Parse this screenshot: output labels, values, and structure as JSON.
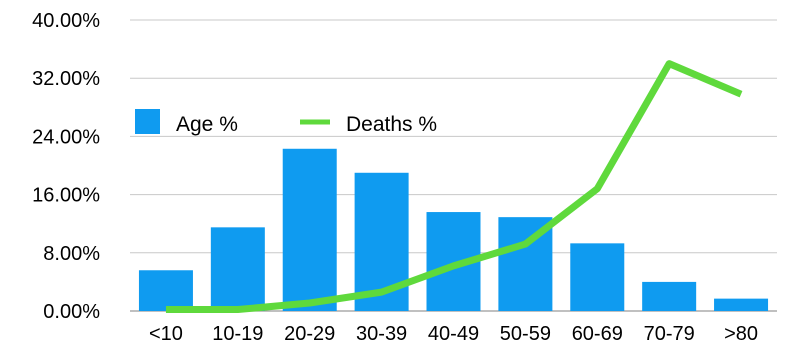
{
  "chart_data": {
    "type": "bar",
    "categories": [
      "<10",
      "10-19",
      "20-29",
      "30-39",
      "40-49",
      "50-59",
      "60-69",
      "70-79",
      ">80"
    ],
    "series": [
      {
        "name": "Age %",
        "type": "bar",
        "color": "#0f9bf0",
        "values": [
          5.6,
          11.5,
          22.3,
          19.0,
          13.6,
          12.9,
          9.3,
          4.0,
          1.7
        ]
      },
      {
        "name": "Deaths %",
        "type": "line",
        "color": "#5fd93c",
        "values": [
          0.2,
          0.2,
          1.1,
          2.6,
          6.2,
          9.2,
          16.8,
          34.0,
          29.8
        ]
      }
    ],
    "ylim": [
      0,
      40
    ],
    "yticks": [
      "0.00%",
      "8.00%",
      "16.00%",
      "24.00%",
      "32.00%",
      "40.00%"
    ],
    "ytick_values": [
      0,
      8,
      16,
      24,
      32,
      40
    ],
    "grid": true,
    "legend": "top-left"
  }
}
